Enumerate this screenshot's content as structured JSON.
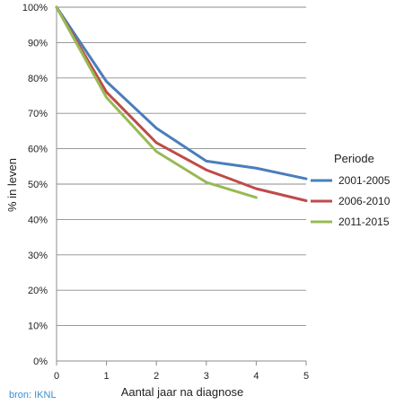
{
  "chart_data": {
    "type": "line",
    "xlabel": "Aantal jaar na diagnose",
    "ylabel": "% in leven",
    "x_ticks": [
      "0",
      "1",
      "2",
      "3",
      "4",
      "5"
    ],
    "y_ticks": [
      "0%",
      "10%",
      "20%",
      "30%",
      "40%",
      "50%",
      "60%",
      "70%",
      "80%",
      "90%",
      "100%"
    ],
    "xlim": [
      0,
      5
    ],
    "ylim": [
      0,
      100
    ],
    "grid": "horizontal",
    "legend_title": "Periode",
    "legend_position": "right",
    "series": [
      {
        "name": "2001-2005",
        "color": "#4a7ebb",
        "x": [
          0,
          1,
          2,
          3,
          4,
          5
        ],
        "y": [
          100,
          79,
          65.8,
          56.5,
          54.5,
          51.5
        ]
      },
      {
        "name": "2006-2010",
        "color": "#be4b48",
        "x": [
          0,
          1,
          2,
          3,
          4,
          5
        ],
        "y": [
          100,
          76,
          61.7,
          54,
          48.7,
          45.3
        ]
      },
      {
        "name": "2011-2015",
        "color": "#98b954",
        "x": [
          0,
          1,
          2,
          3,
          4
        ],
        "y": [
          100,
          74.5,
          59.2,
          50.5,
          46.2
        ]
      }
    ],
    "source": "bron: IKNL"
  }
}
